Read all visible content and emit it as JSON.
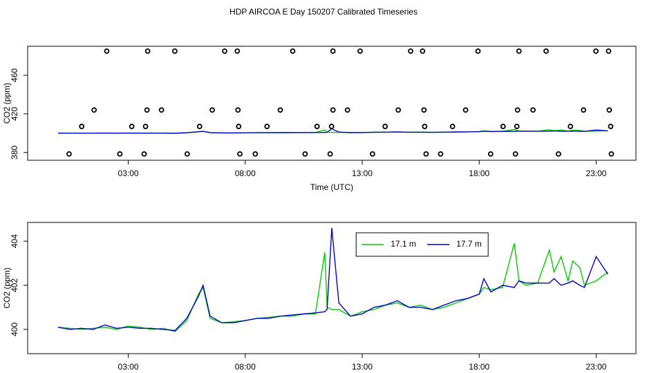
{
  "chart_data": [
    {
      "type": "line",
      "title": "HDP AIRCOA E  Day 150207  Calibrated Timeseries",
      "x_label": "Time (UTC)",
      "y_label": "CO2 (ppm)",
      "xlim": [
        -1.3,
        24.7
      ],
      "xticks": [
        {
          "value": 3,
          "label": "03:00"
        },
        {
          "value": 8,
          "label": "08:00"
        },
        {
          "value": 13,
          "label": "13:00"
        },
        {
          "value": 18,
          "label": "18:00"
        },
        {
          "value": 23,
          "label": "23:00"
        }
      ],
      "ylim": [
        372,
        490
      ],
      "yticks": [
        380,
        420,
        460
      ],
      "x": [
        0,
        0.5,
        1,
        1.5,
        2,
        2.5,
        3,
        3.5,
        4,
        4.5,
        5,
        5.5,
        6,
        6.2,
        6.5,
        7,
        7.5,
        8,
        8.5,
        9,
        9.5,
        10,
        10.5,
        11,
        11.4,
        11.5,
        11.7,
        12,
        12.5,
        13,
        13.5,
        14,
        14.5,
        15,
        15.5,
        16,
        16.5,
        17,
        17.5,
        18,
        18.2,
        18.5,
        19,
        19.5,
        19.7,
        20,
        20.5,
        21,
        21.2,
        21.5,
        21.8,
        22,
        22.3,
        22.5,
        23,
        23.5
      ],
      "series": [
        {
          "color": "#00cc00",
          "values": [
            400.1,
            400.05,
            400.0,
            400.05,
            400.1,
            400.0,
            400.15,
            400.1,
            400.0,
            400.05,
            399.9,
            400.4,
            401.6,
            401.9,
            400.5,
            400.3,
            400.35,
            400.4,
            400.5,
            400.55,
            400.6,
            400.6,
            400.7,
            400.7,
            403.5,
            401.0,
            400.9,
            400.9,
            400.6,
            400.8,
            400.9,
            401.1,
            401.2,
            401.0,
            401.1,
            400.9,
            401.0,
            401.2,
            401.4,
            401.6,
            401.9,
            401.8,
            401.9,
            403.9,
            402.2,
            402.0,
            402.1,
            403.6,
            402.6,
            403.3,
            402.2,
            403.1,
            402.8,
            402.0,
            402.2,
            402.6
          ]
        },
        {
          "color": "#0000cc",
          "values": [
            400.1,
            400.0,
            400.05,
            400.0,
            400.2,
            400.05,
            400.1,
            400.05,
            400.05,
            400.0,
            399.95,
            400.5,
            401.5,
            402.0,
            400.6,
            400.3,
            400.3,
            400.4,
            400.5,
            400.5,
            400.6,
            400.65,
            400.7,
            400.75,
            400.8,
            400.9,
            404.6,
            401.2,
            400.6,
            400.7,
            401.0,
            401.1,
            401.3,
            401.0,
            401.0,
            400.9,
            401.1,
            401.3,
            401.4,
            401.6,
            402.3,
            401.7,
            402.0,
            401.9,
            402.2,
            402.1,
            402.1,
            402.1,
            402.3,
            402.0,
            402.1,
            402.2,
            402.0,
            401.9,
            403.3,
            402.5
          ]
        },
        {
          "color": "#000000",
          "marker": "circle",
          "x": [
            0.47,
            2.64,
            3.68,
            5.52,
            7.77,
            8.43,
            10.56,
            11.63,
            13.44,
            15.73,
            16.35,
            18.49,
            19.55,
            21.39,
            23.65,
            1.01,
            3.15,
            3.74,
            6.05,
            7.72,
            8.93,
            11.07,
            11.69,
            13.98,
            15.67,
            16.86,
            19.02,
            19.61,
            21.9,
            23.62,
            1.54,
            3.8,
            4.42,
            6.59,
            7.69,
            9.5,
            11.75,
            12.37,
            14.54,
            15.64,
            17.42,
            19.64,
            20.3,
            22.46,
            23.56,
            2.08,
            3.83,
            4.99,
            7.12,
            7.66,
            10.03,
            11.75,
            12.91,
            15.07,
            15.58,
            17.95,
            19.7,
            20.86,
            22.99,
            23.53
          ],
          "values": [
            378.5,
            378.5,
            378.5,
            378.5,
            378.5,
            378.5,
            378.5,
            378.5,
            378.5,
            378.5,
            378.5,
            378.5,
            378.5,
            378.5,
            378.5,
            407,
            407,
            407,
            407,
            407,
            407,
            407,
            407,
            407,
            407,
            407,
            407,
            407,
            407,
            407,
            424,
            424,
            424,
            424,
            424,
            424,
            424,
            424,
            424,
            424,
            424,
            424,
            424,
            424,
            424,
            485,
            485,
            485,
            485,
            485,
            485,
            485,
            485,
            485,
            485,
            485,
            485,
            485,
            485,
            485
          ]
        }
      ]
    },
    {
      "type": "line",
      "x_label": "Time (UTC)",
      "y_label": "CO2 (ppm)",
      "xlim": [
        -1.3,
        24.7
      ],
      "xticks": [
        {
          "value": 3,
          "label": "03:00"
        },
        {
          "value": 8,
          "label": "08:00"
        },
        {
          "value": 13,
          "label": "13:00"
        },
        {
          "value": 18,
          "label": "18:00"
        },
        {
          "value": 23,
          "label": "23:00"
        }
      ],
      "ylim": [
        398.9,
        404.85
      ],
      "yticks": [
        400,
        402,
        404
      ],
      "legend": "top",
      "x": [
        0,
        0.5,
        1,
        1.5,
        2,
        2.5,
        3,
        3.5,
        4,
        4.5,
        5,
        5.5,
        6,
        6.2,
        6.5,
        7,
        7.5,
        8,
        8.5,
        9,
        9.5,
        10,
        10.5,
        11,
        11.4,
        11.5,
        11.7,
        12,
        12.5,
        13,
        13.5,
        14,
        14.5,
        15,
        15.5,
        16,
        16.5,
        17,
        17.5,
        18,
        18.2,
        18.5,
        19,
        19.5,
        19.7,
        20,
        20.5,
        21,
        21.2,
        21.5,
        21.8,
        22,
        22.3,
        22.5,
        23,
        23.5
      ],
      "series": [
        {
          "name": "17.1 m",
          "color": "#00cc00",
          "values": [
            400.1,
            400.05,
            400.0,
            400.05,
            400.1,
            400.0,
            400.15,
            400.1,
            400.0,
            400.05,
            399.9,
            400.4,
            401.6,
            401.9,
            400.5,
            400.3,
            400.35,
            400.4,
            400.5,
            400.55,
            400.6,
            400.6,
            400.7,
            400.7,
            403.5,
            401.0,
            400.9,
            400.9,
            400.6,
            400.8,
            400.9,
            401.1,
            401.2,
            401.0,
            401.1,
            400.9,
            401.0,
            401.2,
            401.4,
            401.6,
            401.9,
            401.8,
            401.9,
            403.9,
            402.2,
            402.0,
            402.1,
            403.6,
            402.6,
            403.3,
            402.2,
            403.1,
            402.8,
            402.0,
            402.2,
            402.6
          ]
        },
        {
          "name": "17.7 m",
          "color": "#0000cc",
          "values": [
            400.1,
            400.0,
            400.05,
            400.0,
            400.2,
            400.05,
            400.1,
            400.05,
            400.05,
            400.0,
            399.95,
            400.5,
            401.5,
            402.0,
            400.6,
            400.3,
            400.3,
            400.4,
            400.5,
            400.5,
            400.6,
            400.65,
            400.7,
            400.75,
            400.8,
            400.9,
            404.6,
            401.2,
            400.6,
            400.7,
            401.0,
            401.1,
            401.3,
            401.0,
            401.0,
            400.9,
            401.1,
            401.3,
            401.4,
            401.6,
            402.3,
            401.7,
            402.0,
            401.9,
            402.2,
            402.1,
            402.1,
            402.1,
            402.3,
            402.0,
            402.1,
            402.2,
            402.0,
            401.9,
            403.3,
            402.5
          ]
        }
      ]
    }
  ]
}
